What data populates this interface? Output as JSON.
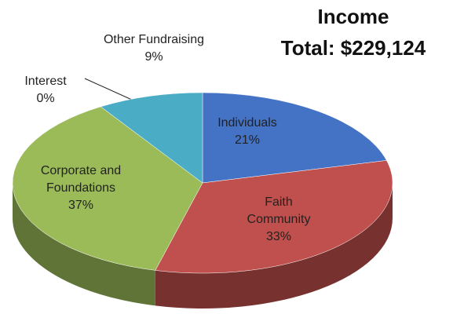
{
  "chart_data": {
    "type": "pie",
    "title": "Income",
    "subtitle": "Total: $229,124",
    "categories": [
      "Individuals",
      "Faith Community",
      "Corporate and Foundations",
      "Interest",
      "Other Fundraising"
    ],
    "values": [
      21,
      33,
      37,
      0,
      9
    ],
    "value_labels": [
      "21%",
      "33%",
      "37%",
      "0%",
      "9%"
    ],
    "colors": [
      "#4472c4",
      "#c0504d",
      "#9bbb59",
      "#8064a2",
      "#4bacc6"
    ]
  }
}
